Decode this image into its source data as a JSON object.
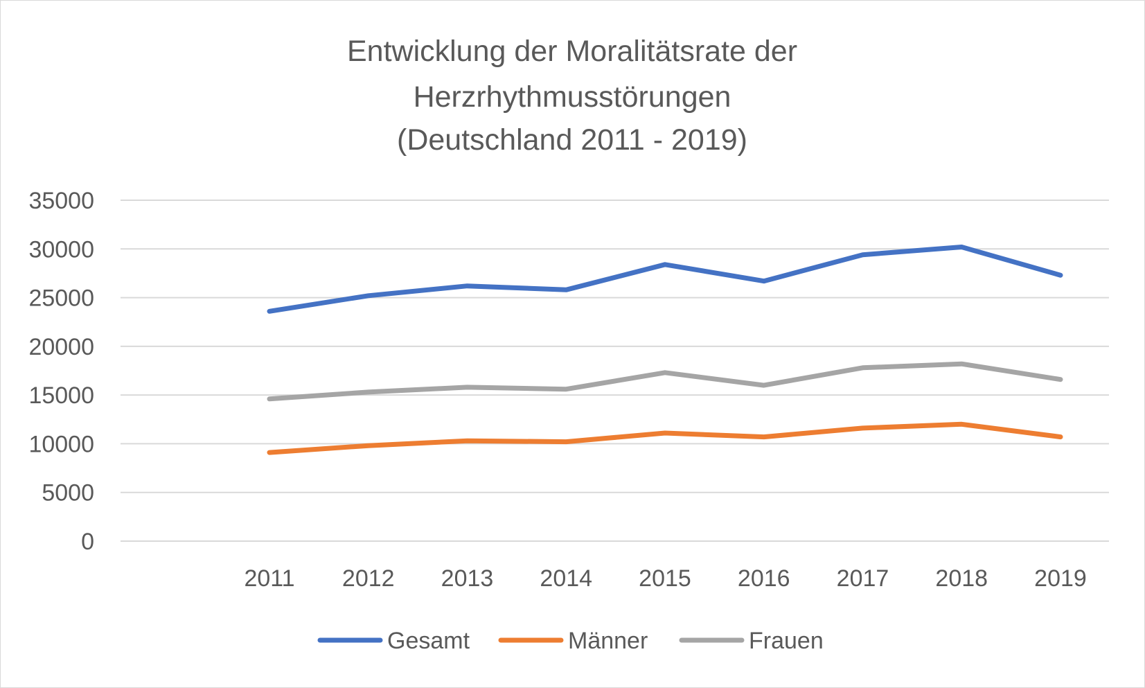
{
  "chart_data": {
    "type": "line",
    "title_lines": [
      "Entwicklung der Moralitätsrate der",
      "Herzrhythmusstörungen",
      "(Deutschland 2011 - 2019)"
    ],
    "xlabel": "",
    "ylabel": "",
    "categories": [
      "2011",
      "2012",
      "2013",
      "2014",
      "2015",
      "2016",
      "2017",
      "2018",
      "2019"
    ],
    "ylim": [
      0,
      35000
    ],
    "yticks": [
      0,
      5000,
      10000,
      15000,
      20000,
      25000,
      30000,
      35000
    ],
    "grid": true,
    "legend_position": "bottom",
    "series": [
      {
        "name": "Gesamt",
        "color": "#4472c4",
        "values": [
          23600,
          25200,
          26200,
          25800,
          28400,
          26700,
          29400,
          30200,
          27300
        ]
      },
      {
        "name": "Männer",
        "color": "#ed7d31",
        "values": [
          9100,
          9800,
          10300,
          10200,
          11100,
          10700,
          11600,
          12000,
          10700
        ]
      },
      {
        "name": "Frauen",
        "color": "#a5a5a5",
        "values": [
          14600,
          15300,
          15800,
          15600,
          17300,
          16000,
          17800,
          18200,
          16600
        ]
      }
    ]
  }
}
